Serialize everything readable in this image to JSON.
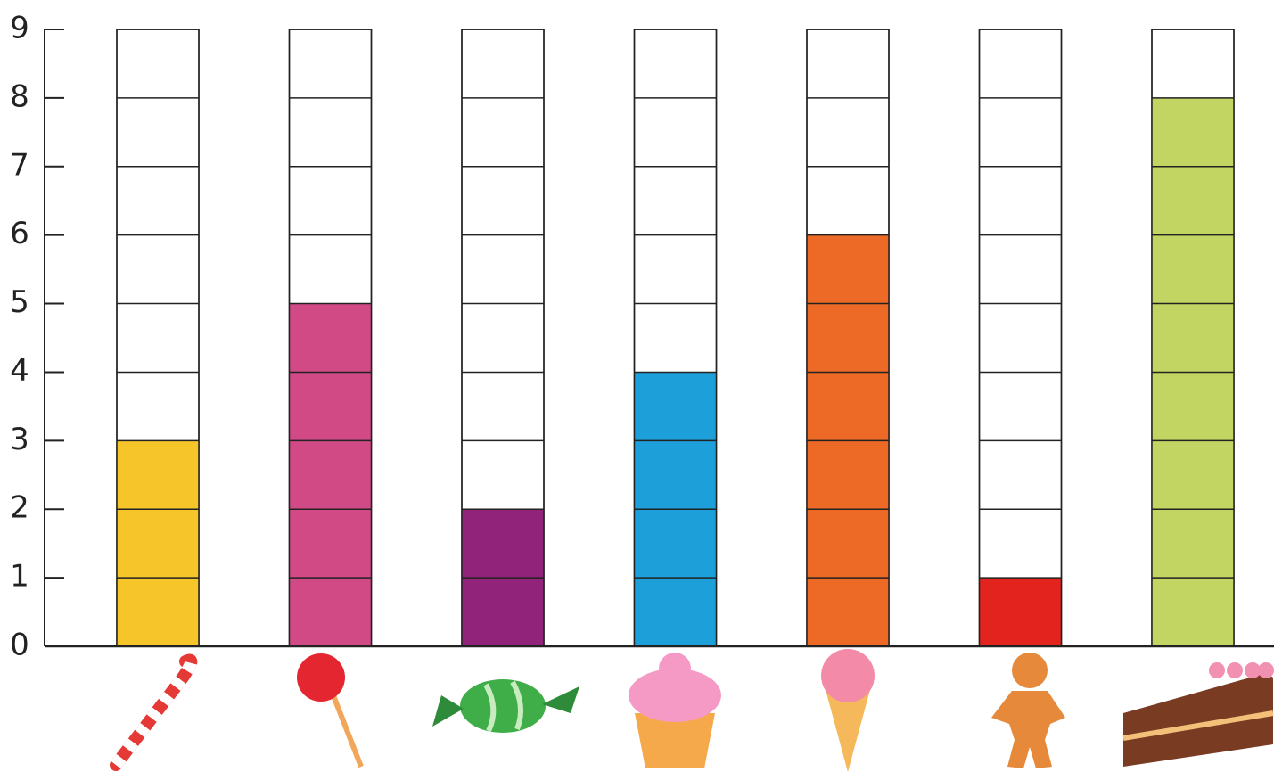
{
  "chart_data": {
    "type": "bar",
    "categories": [
      null,
      null,
      null,
      null,
      null,
      null,
      null
    ],
    "values": [
      3,
      5,
      2,
      4,
      6,
      1,
      8
    ],
    "colors": [
      "#f5c52a",
      "#d14985",
      "#92237b",
      "#1d9fda",
      "#ec6a25",
      "#e2231e",
      "#c2d462"
    ],
    "ylim": [
      0,
      9
    ],
    "yticks": [
      0,
      1,
      2,
      3,
      4,
      5,
      6,
      7,
      8,
      9
    ],
    "grid": true
  }
}
